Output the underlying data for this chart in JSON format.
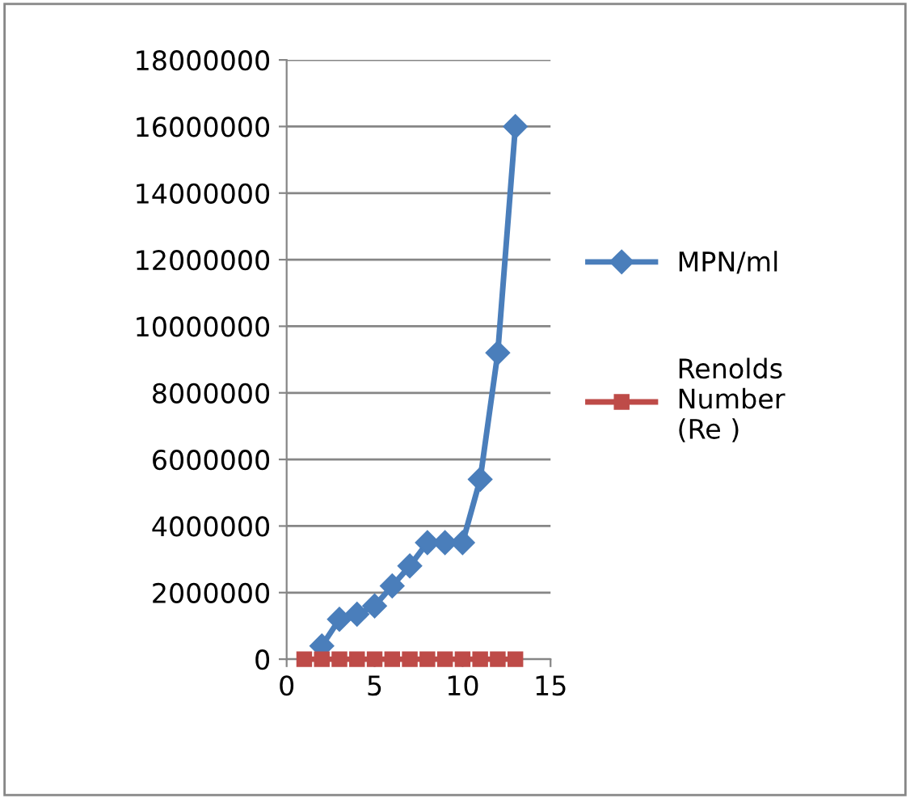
{
  "chart_data": {
    "type": "line",
    "x": [
      1,
      2,
      3,
      4,
      5,
      6,
      7,
      8,
      9,
      10,
      11,
      12,
      13
    ],
    "series": [
      {
        "name": "MPN/ml",
        "color": "#4a7ebb",
        "marker": "diamond",
        "values": [
          null,
          400000,
          1200000,
          1350000,
          1600000,
          2200000,
          2800000,
          3500000,
          3500000,
          3500000,
          5400000,
          9200000,
          16000000
        ]
      },
      {
        "name": "Renolds Number (Re )",
        "color": "#be4b48",
        "marker": "square",
        "values": [
          0,
          0,
          0,
          0,
          0,
          0,
          0,
          0,
          0,
          0,
          0,
          0,
          0
        ]
      }
    ],
    "xlim": [
      0,
      15
    ],
    "xticks": [
      0,
      5,
      10,
      15
    ],
    "ylim": [
      0,
      18000000
    ],
    "yticks": [
      0,
      2000000,
      4000000,
      6000000,
      8000000,
      10000000,
      12000000,
      14000000,
      16000000,
      18000000
    ],
    "grid": "y",
    "legend": "right",
    "line_style": "solid"
  }
}
